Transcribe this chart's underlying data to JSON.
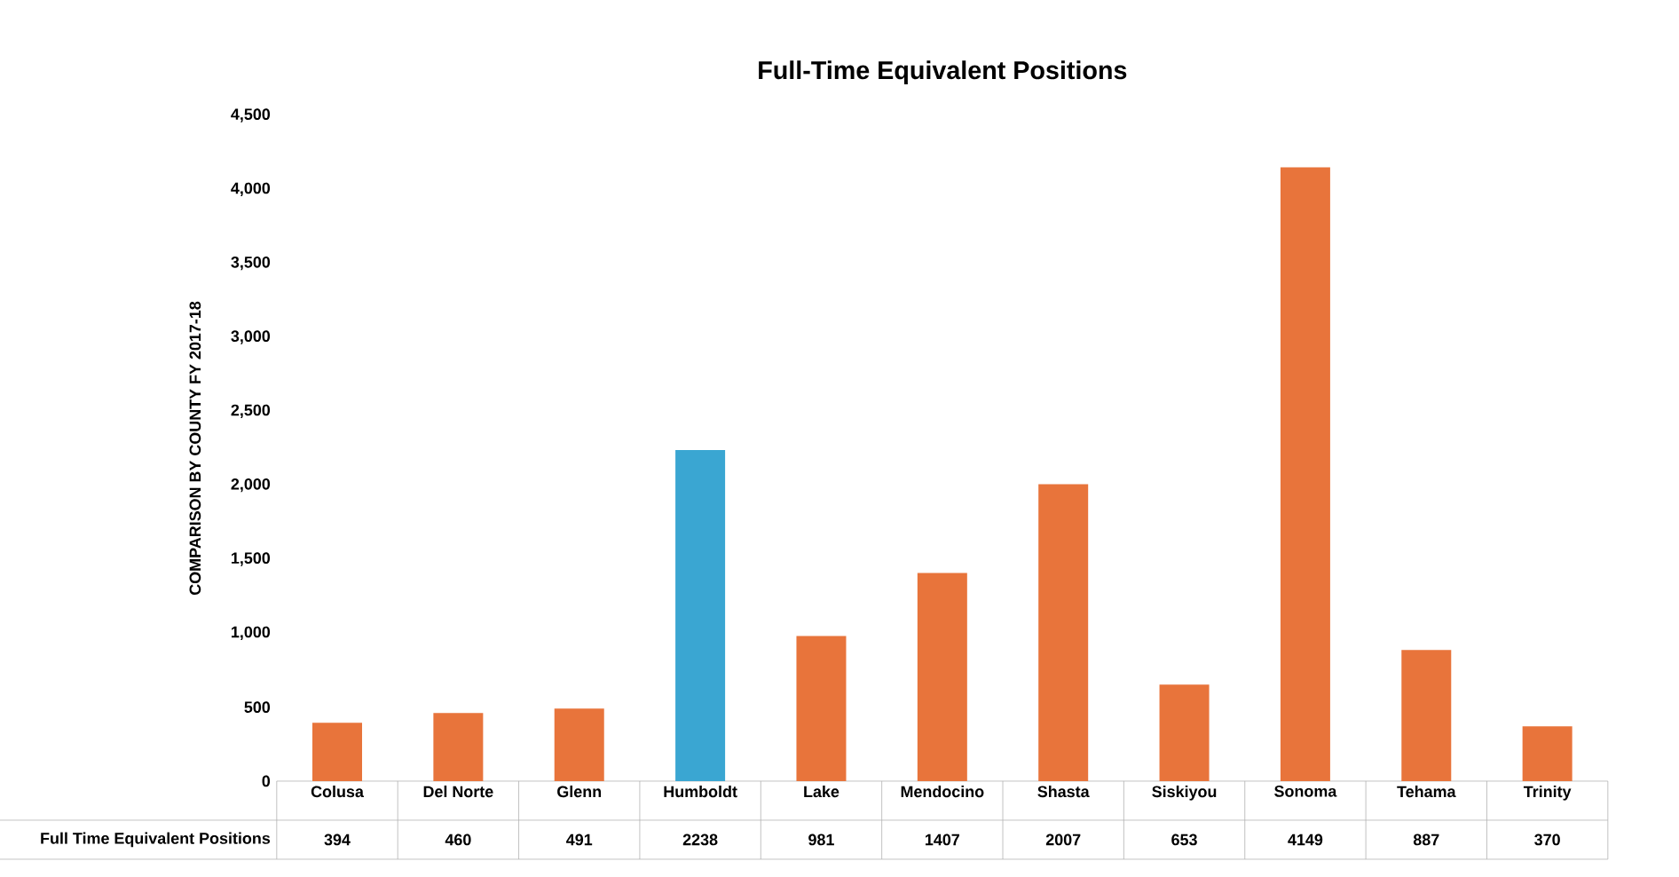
{
  "chart_data": {
    "type": "bar",
    "title": "Full-Time Equivalent Positions",
    "ylabel": "COMPARISON BY COUNTY FY 2017-18",
    "categories": [
      "Colusa",
      "Del Norte",
      "Glenn",
      "Humboldt",
      "Lake",
      "Mendocino",
      "Shasta",
      "Siskiyou",
      "Sonoma",
      "Tehama",
      "Trinity"
    ],
    "series": [
      {
        "name": "Full Time Equivalent Positions",
        "values": [
          394,
          460,
          491,
          2238,
          981,
          1407,
          2007,
          653,
          4149,
          887,
          370
        ],
        "colors": [
          "#e8743b",
          "#e8743b",
          "#e8743b",
          "#3aa6d2",
          "#e8743b",
          "#e8743b",
          "#e8743b",
          "#e8743b",
          "#e8743b",
          "#e8743b",
          "#e8743b"
        ]
      }
    ],
    "ylim": [
      0,
      4500
    ],
    "yticks": [
      {
        "value": 0,
        "label": "0"
      },
      {
        "value": 500,
        "label": "500"
      },
      {
        "value": 1000,
        "label": "1,000"
      },
      {
        "value": 1500,
        "label": "1,500"
      },
      {
        "value": 2000,
        "label": "2,000"
      },
      {
        "value": 2500,
        "label": "2,500"
      },
      {
        "value": 3000,
        "label": "3,000"
      },
      {
        "value": 3500,
        "label": "3,500"
      },
      {
        "value": 4000,
        "label": "4,000"
      },
      {
        "value": 4500,
        "label": "4,500"
      }
    ],
    "data_labels": true,
    "grid": false
  }
}
